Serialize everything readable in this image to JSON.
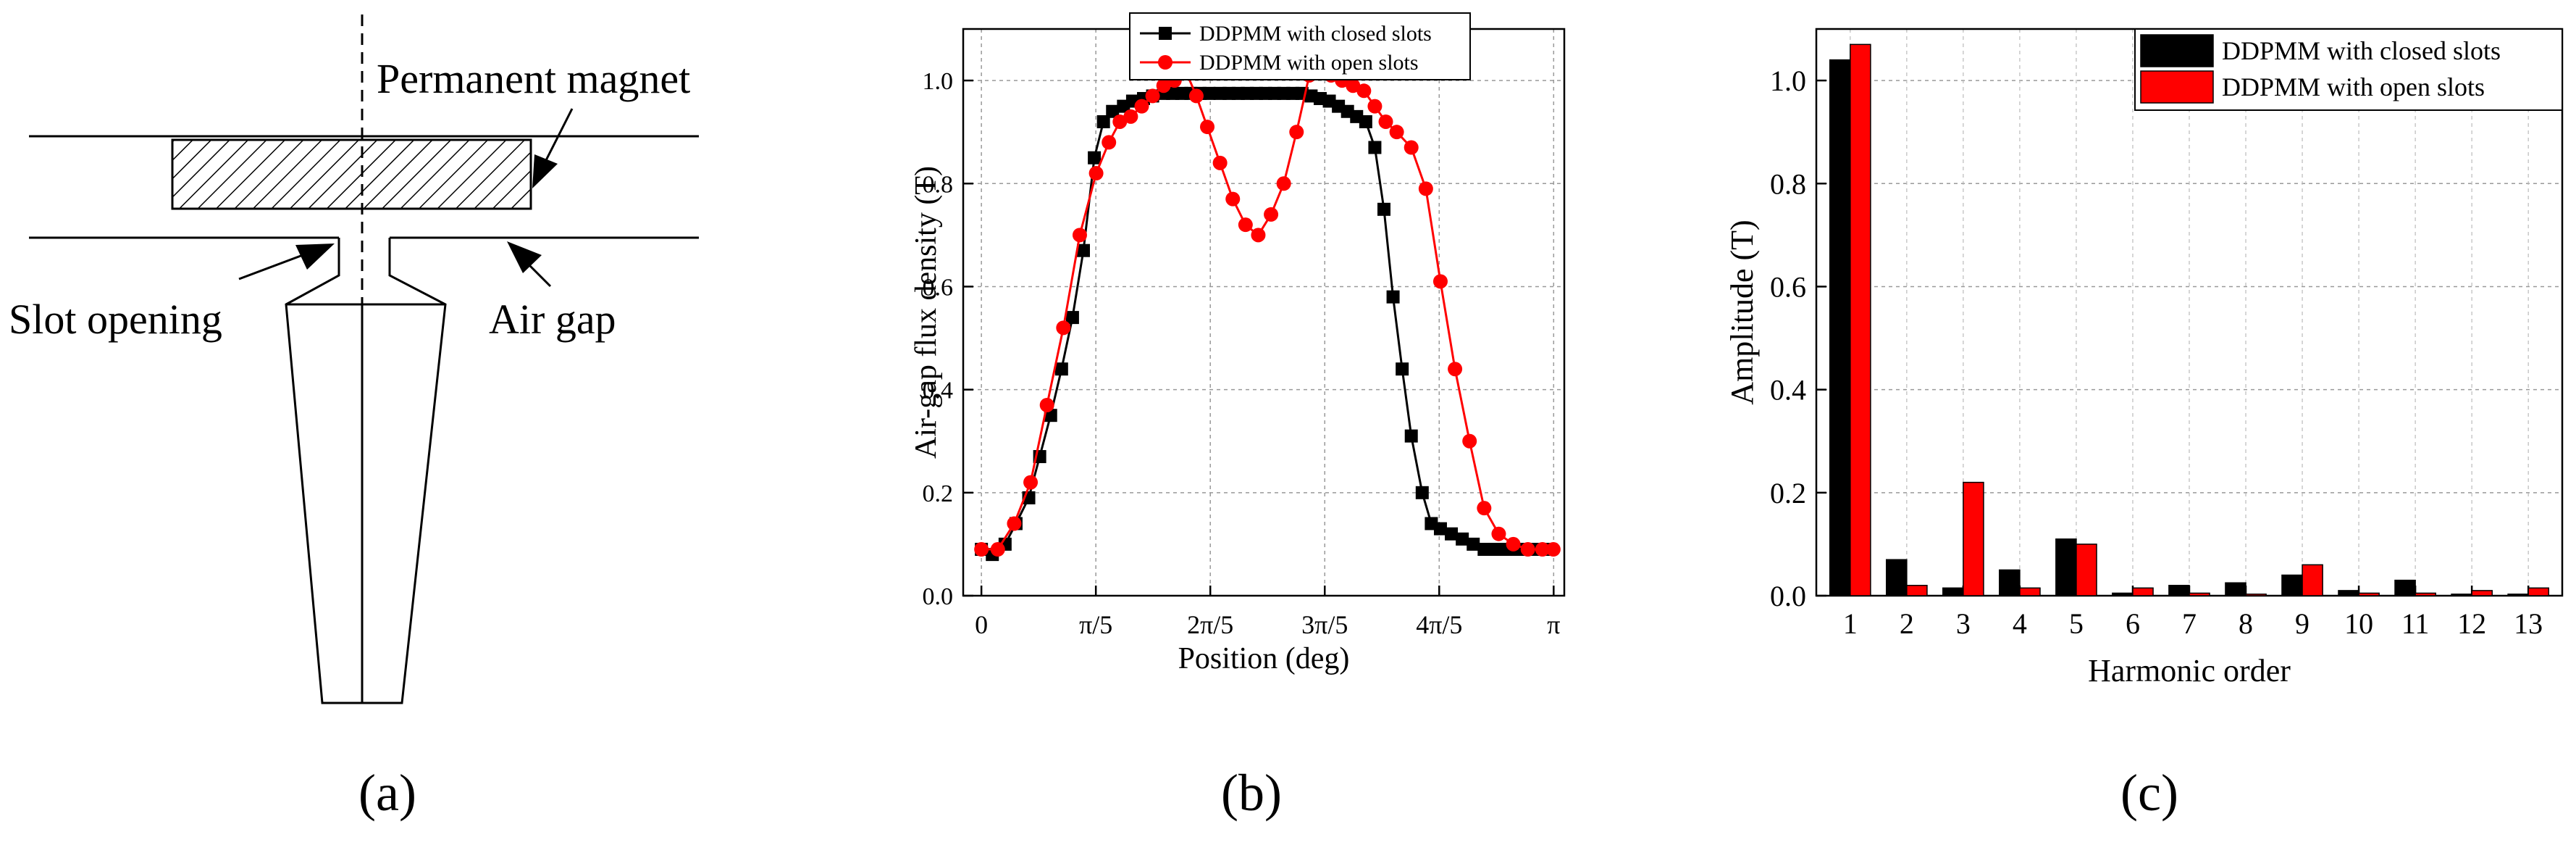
{
  "panels": {
    "a": {
      "caption": "(a)",
      "labels": {
        "permanent_magnet": "Permanent magnet",
        "slot_opening": "Slot opening",
        "air_gap": "Air gap"
      }
    },
    "b": {
      "caption": "(b)"
    },
    "c": {
      "caption": "(c)"
    }
  },
  "chart_data": [
    {
      "id": "b",
      "type": "line",
      "title": "",
      "xlabel": "Position (deg)",
      "ylabel": "Air-gap flux density  (T)",
      "xlim": [
        -0.1,
        3.2
      ],
      "ylim": [
        0,
        1.1
      ],
      "yticks": [
        0.0,
        0.2,
        0.4,
        0.6,
        0.8,
        1.0
      ],
      "ytick_labels": [
        "0.0",
        "0.2",
        "0.4",
        "0.6",
        "0.8",
        "1.0"
      ],
      "xticks": [
        0,
        0.6283,
        1.2566,
        1.885,
        2.5133,
        3.1416
      ],
      "xtick_labels": [
        "0",
        "π/5",
        "2π/5",
        "3π/5",
        "4π/5",
        "π"
      ],
      "grid": true,
      "legend_position": "top-center",
      "series": [
        {
          "name": "DDPMM with closed slots",
          "color": "#000000",
          "marker": "square",
          "x": [
            0,
            0.06,
            0.13,
            0.19,
            0.26,
            0.32,
            0.38,
            0.44,
            0.5,
            0.56,
            0.62,
            0.67,
            0.72,
            0.78,
            0.83,
            0.89,
            0.94,
            1.0,
            1.05,
            1.1,
            1.15,
            1.2,
            1.25,
            1.31,
            1.36,
            1.41,
            1.46,
            1.51,
            1.56,
            1.61,
            1.66,
            1.71,
            1.76,
            1.81,
            1.86,
            1.91,
            1.96,
            2.01,
            2.06,
            2.11,
            2.16,
            2.21,
            2.26,
            2.31,
            2.36,
            2.42,
            2.47,
            2.52,
            2.58,
            2.64,
            2.7,
            2.76,
            2.82,
            2.88,
            2.94,
            3.0,
            3.06,
            3.12
          ],
          "y": [
            0.09,
            0.08,
            0.1,
            0.14,
            0.19,
            0.27,
            0.35,
            0.44,
            0.54,
            0.67,
            0.85,
            0.92,
            0.94,
            0.95,
            0.96,
            0.965,
            0.97,
            0.975,
            0.975,
            0.975,
            0.975,
            0.975,
            0.975,
            0.975,
            0.975,
            0.975,
            0.975,
            0.975,
            0.975,
            0.975,
            0.975,
            0.975,
            0.975,
            0.97,
            0.965,
            0.96,
            0.95,
            0.94,
            0.93,
            0.92,
            0.87,
            0.75,
            0.58,
            0.44,
            0.31,
            0.2,
            0.14,
            0.13,
            0.12,
            0.11,
            0.1,
            0.09,
            0.09,
            0.09,
            0.09,
            0.09,
            0.09,
            0.09
          ]
        },
        {
          "name": "DDPMM with open slots",
          "color": "#ff0000",
          "marker": "circle",
          "x": [
            0,
            0.09,
            0.18,
            0.27,
            0.36,
            0.45,
            0.54,
            0.63,
            0.7,
            0.76,
            0.82,
            0.88,
            0.94,
            1.0,
            1.06,
            1.12,
            1.18,
            1.24,
            1.31,
            1.38,
            1.45,
            1.52,
            1.59,
            1.66,
            1.73,
            1.8,
            1.86,
            1.92,
            1.98,
            2.04,
            2.1,
            2.16,
            2.22,
            2.28,
            2.36,
            2.44,
            2.52,
            2.6,
            2.68,
            2.76,
            2.84,
            2.92,
            3.0,
            3.08,
            3.14
          ],
          "y": [
            0.09,
            0.09,
            0.14,
            0.22,
            0.37,
            0.52,
            0.7,
            0.82,
            0.88,
            0.92,
            0.93,
            0.95,
            0.97,
            0.99,
            1.0,
            1.02,
            0.97,
            0.91,
            0.84,
            0.77,
            0.72,
            0.7,
            0.74,
            0.8,
            0.9,
            1.01,
            1.02,
            1.01,
            1.0,
            0.99,
            0.98,
            0.95,
            0.92,
            0.9,
            0.87,
            0.79,
            0.61,
            0.44,
            0.3,
            0.17,
            0.12,
            0.1,
            0.09,
            0.09,
            0.09
          ]
        }
      ]
    },
    {
      "id": "c",
      "type": "bar",
      "title": "",
      "xlabel": "Harmonic order",
      "ylabel": "Amplitude (T)",
      "categories": [
        "1",
        "2",
        "3",
        "4",
        "5",
        "6",
        "7",
        "8",
        "9",
        "10",
        "11",
        "12",
        "13"
      ],
      "ylim": [
        0,
        1.1
      ],
      "yticks": [
        0.0,
        0.2,
        0.4,
        0.6,
        0.8,
        1.0
      ],
      "ytick_labels": [
        "0.0",
        "0.2",
        "0.4",
        "0.6",
        "0.8",
        "1.0"
      ],
      "grid": true,
      "legend_position": "top-right",
      "series": [
        {
          "name": "DDPMM with closed slots",
          "color": "#000000",
          "values": [
            1.04,
            0.07,
            0.015,
            0.05,
            0.11,
            0.005,
            0.02,
            0.025,
            0.04,
            0.01,
            0.03,
            0.003,
            0.003
          ]
        },
        {
          "name": "DDPMM with open slots",
          "color": "#ff0000",
          "values": [
            1.07,
            0.02,
            0.22,
            0.015,
            0.1,
            0.015,
            0.005,
            0.003,
            0.06,
            0.005,
            0.005,
            0.01,
            0.015
          ]
        }
      ]
    }
  ]
}
